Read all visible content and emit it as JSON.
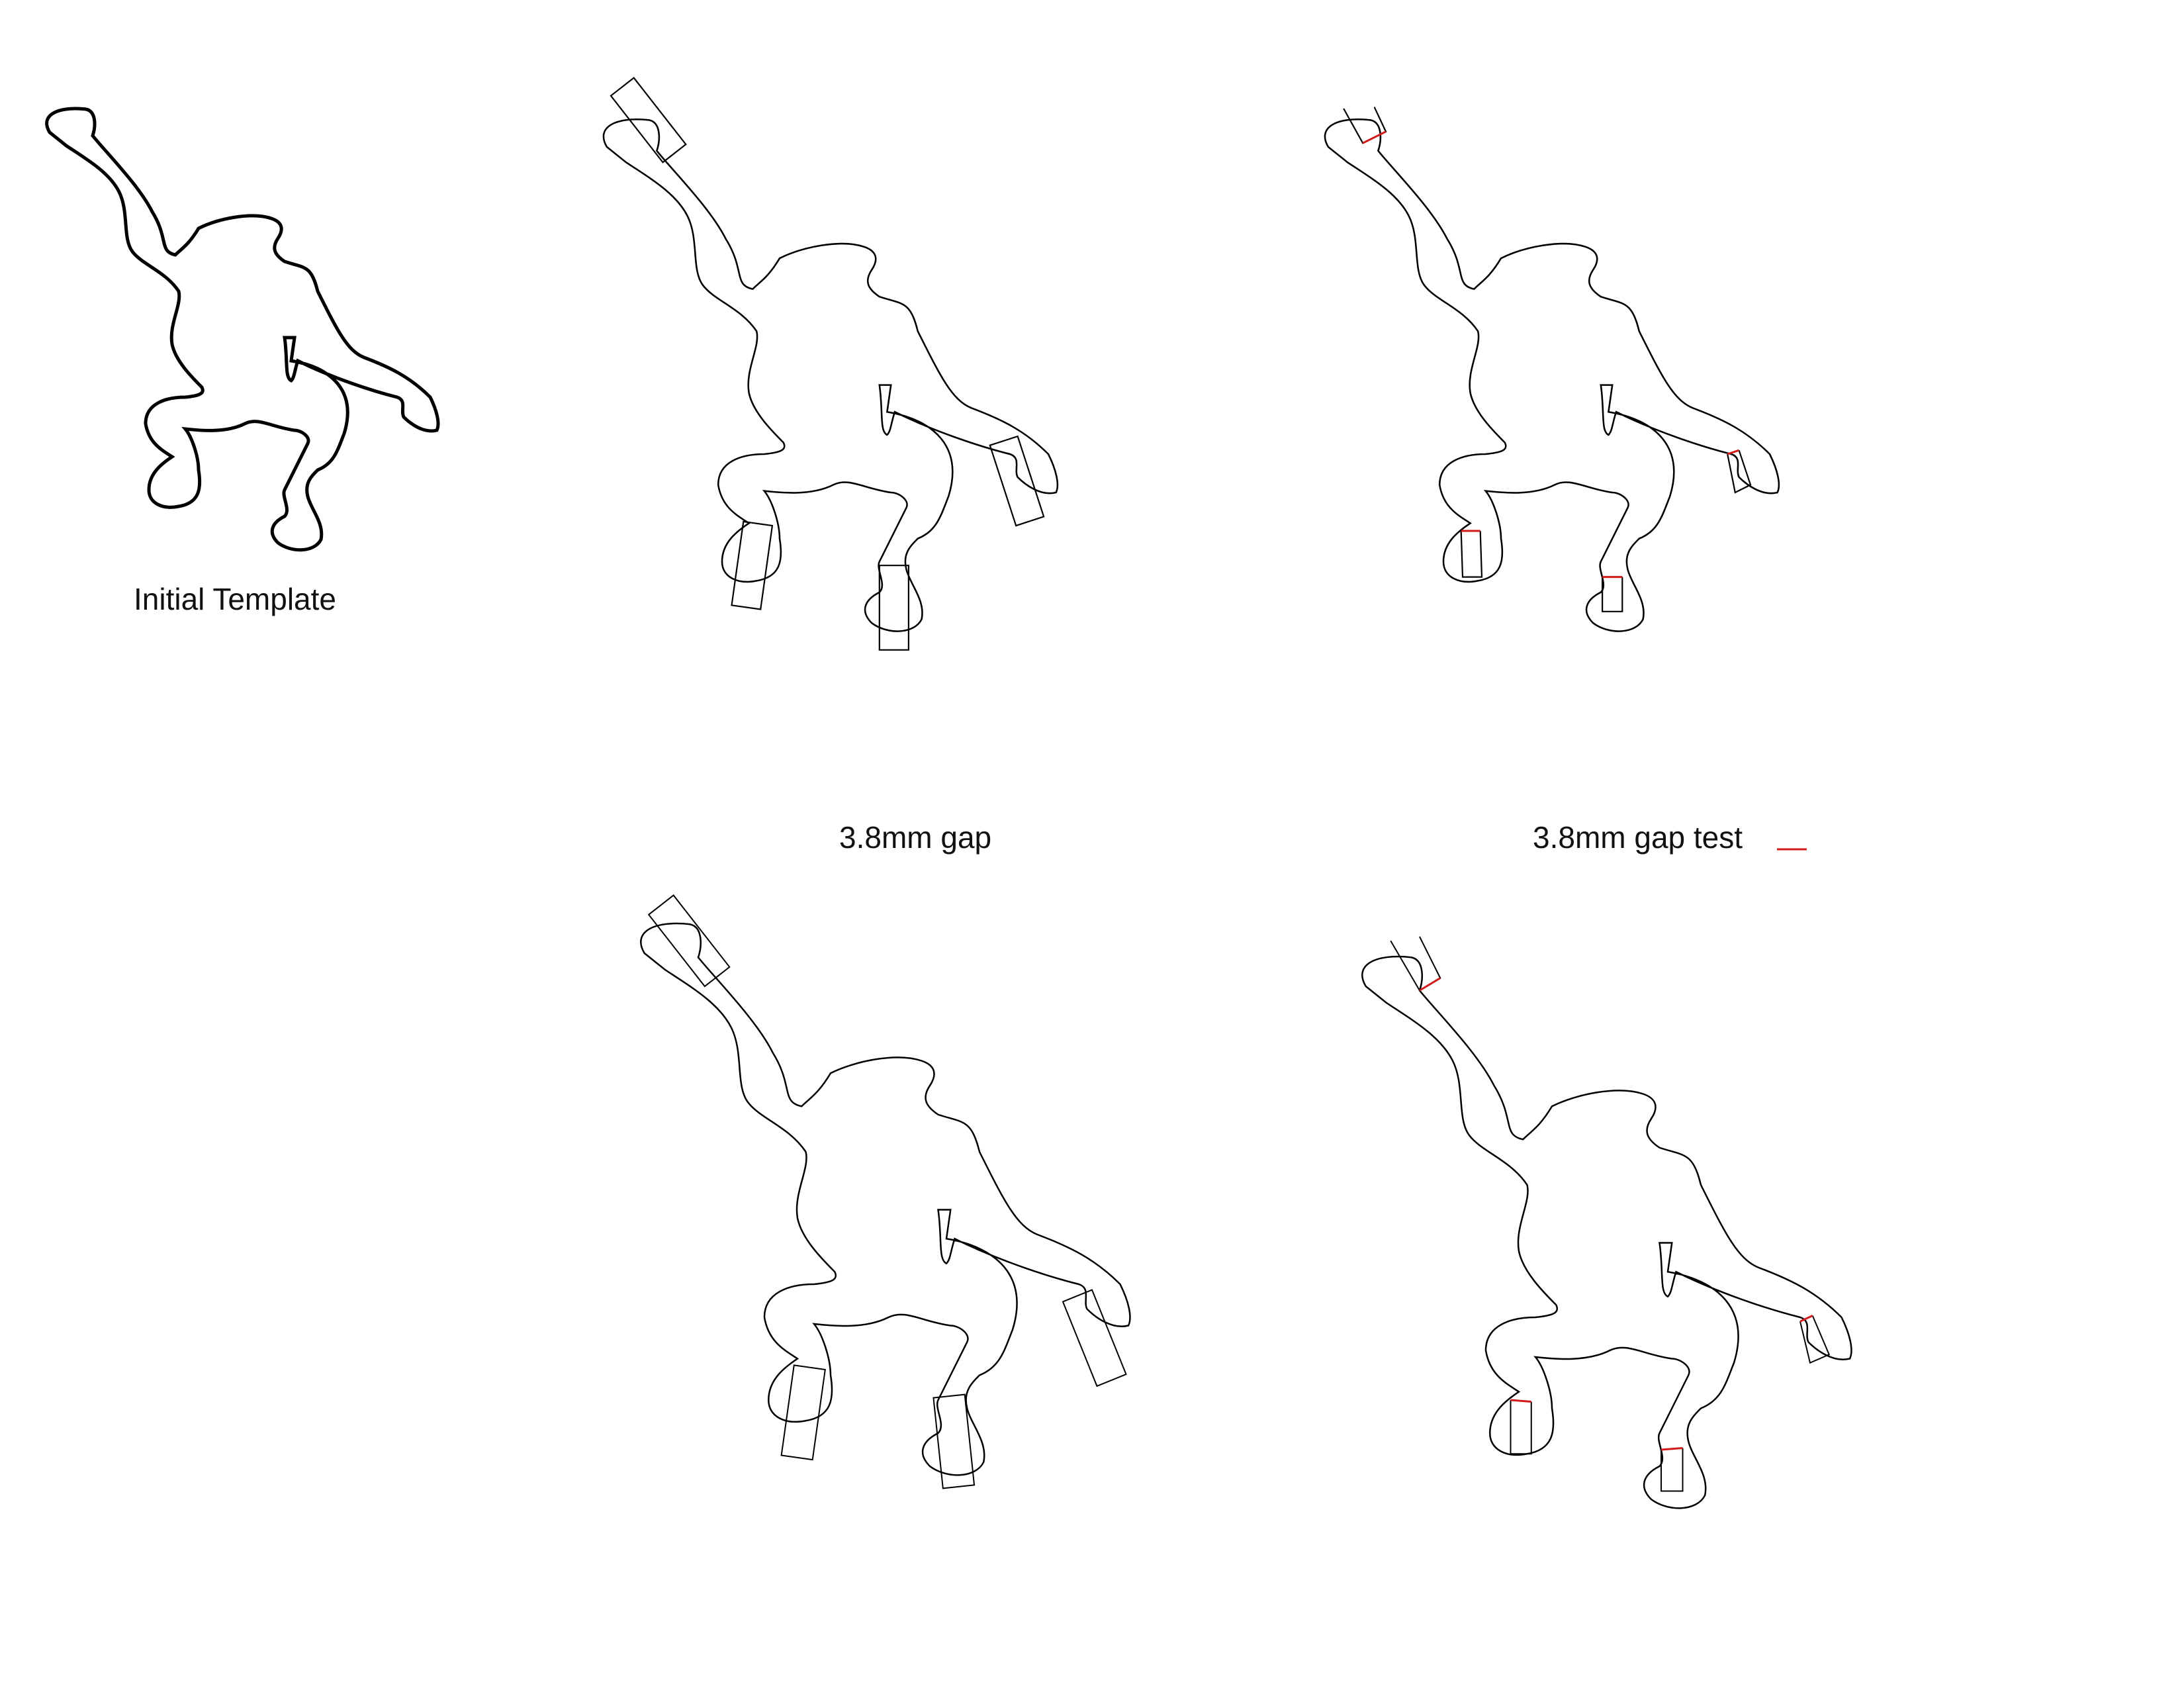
{
  "captions": {
    "initial": "Initial Template",
    "gap": "3.8mm gap",
    "gap_test": "3.8mm gap test"
  },
  "colors": {
    "outline": "#000000",
    "cut_line": "#d11a1a"
  },
  "figures": [
    {
      "id": "initial-template",
      "style": "thick outline, no tabs"
    },
    {
      "id": "gap-with-slots",
      "style": "thin outline with rectangular slot markers"
    },
    {
      "id": "gap-test-cut",
      "style": "thin outline with notched slots and red cut lines"
    },
    {
      "id": "large-with-slots",
      "style": "thin outline with rectangular slot markers"
    },
    {
      "id": "large-test-cut",
      "style": "thin outline with notched slots and red cut lines"
    }
  ]
}
